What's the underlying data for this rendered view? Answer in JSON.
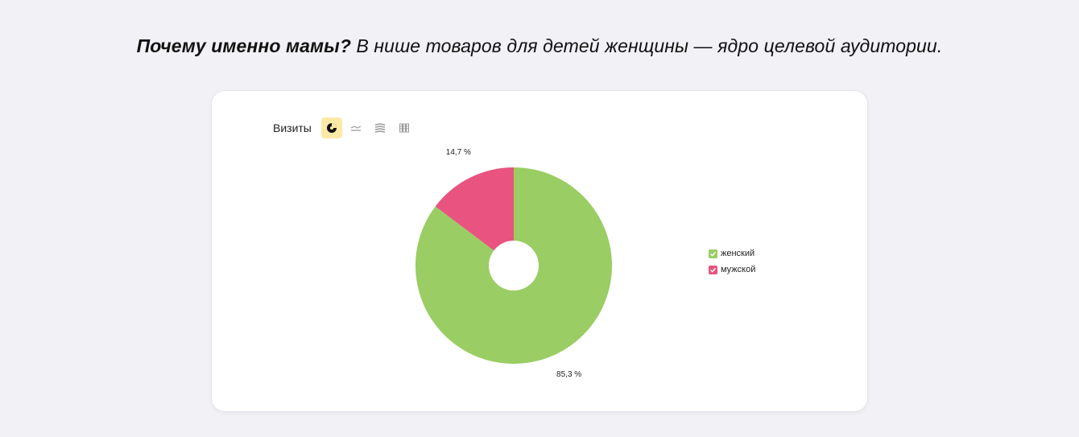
{
  "headline": {
    "bold": "Почему именно мамы?",
    "rest": " В нише товаров для детей женщины — ядро целевой аудитории."
  },
  "toolbar": {
    "title": "Визиты",
    "buttons": [
      {
        "icon": "pie-chart-icon",
        "active": true
      },
      {
        "icon": "line-chart-icon",
        "active": false
      },
      {
        "icon": "area-chart-icon",
        "active": false
      },
      {
        "icon": "bar-chart-icon",
        "active": false
      }
    ]
  },
  "colors": {
    "female": "#9acd63",
    "male": "#e8547f",
    "active_button": "#fde9a6"
  },
  "chart_data": {
    "type": "pie",
    "donut": true,
    "legend_position": "right",
    "series": [
      {
        "name": "женский",
        "value": 85.3,
        "label": "85,3 %",
        "color": "#9acd63"
      },
      {
        "name": "мужской",
        "value": 14.7,
        "label": "14,7 %",
        "color": "#e8547f"
      }
    ]
  }
}
